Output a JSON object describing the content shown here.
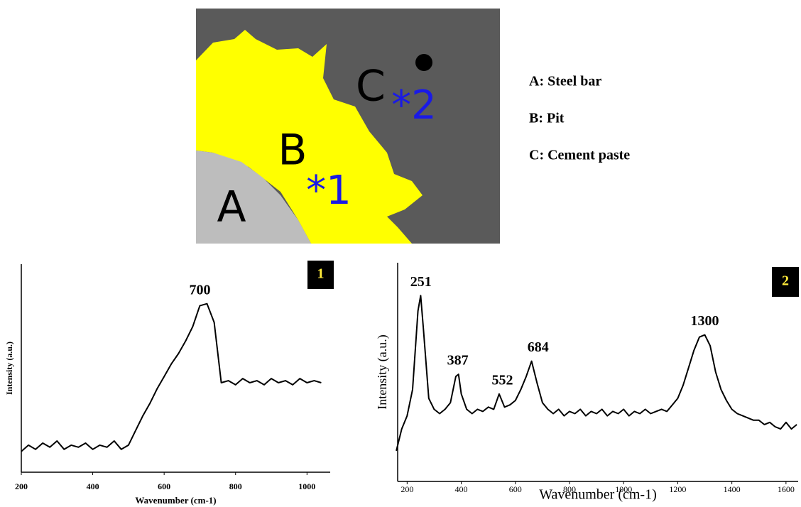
{
  "image": {
    "labels": [
      "A",
      "B",
      "C"
    ],
    "points": [
      "*1",
      "*2"
    ],
    "legend": [
      "A: Steel bar",
      "B: Pit",
      "C: Cement paste"
    ]
  },
  "chart_data": [
    {
      "type": "line",
      "panel": "1",
      "x_label": "Wavenumber (cm-1)",
      "y_label": "Intensity (a.u.)",
      "color": "#000000",
      "x": [
        200,
        220,
        240,
        260,
        280,
        300,
        320,
        340,
        360,
        380,
        400,
        420,
        440,
        460,
        480,
        500,
        520,
        540,
        560,
        580,
        600,
        620,
        640,
        660,
        680,
        700,
        720,
        740,
        760,
        780,
        800,
        820,
        840,
        860,
        880,
        900,
        920,
        940,
        960,
        980,
        1000,
        1020,
        1040
      ],
      "values": [
        10,
        13,
        11,
        14,
        12,
        15,
        11,
        13,
        12,
        14,
        11,
        13,
        12,
        15,
        11,
        13,
        20,
        27,
        33,
        40,
        46,
        52,
        57,
        63,
        70,
        80,
        81,
        72,
        43,
        44,
        42,
        45,
        43,
        44,
        42,
        45,
        43,
        44,
        42,
        45,
        43,
        44,
        43
      ],
      "xlim": [
        200,
        1065
      ],
      "xticks": [
        200,
        400,
        600,
        800,
        1000
      ],
      "ylim": [
        0,
        100
      ],
      "peaks": [
        700
      ]
    },
    {
      "type": "line",
      "panel": "2",
      "x_label": "Wavenumber (cm-1)",
      "y_label": "Intensity (a.u.)",
      "color": "#000000",
      "x": [
        160,
        180,
        200,
        220,
        240,
        250,
        260,
        280,
        300,
        320,
        340,
        360,
        380,
        390,
        400,
        420,
        440,
        460,
        480,
        500,
        520,
        540,
        560,
        580,
        600,
        620,
        640,
        660,
        680,
        700,
        720,
        740,
        760,
        780,
        800,
        820,
        840,
        860,
        880,
        900,
        920,
        940,
        960,
        980,
        1000,
        1020,
        1040,
        1060,
        1080,
        1100,
        1120,
        1140,
        1160,
        1180,
        1200,
        1220,
        1240,
        1260,
        1280,
        1300,
        1320,
        1340,
        1360,
        1380,
        1400,
        1420,
        1440,
        1460,
        1480,
        1500,
        1520,
        1540,
        1560,
        1580,
        1600,
        1620,
        1640
      ],
      "values": [
        14,
        24,
        30,
        42,
        78,
        85,
        70,
        38,
        33,
        31,
        33,
        36,
        48,
        49,
        40,
        33,
        31,
        33,
        32,
        34,
        33,
        40,
        34,
        35,
        37,
        42,
        48,
        55,
        45,
        36,
        33,
        31,
        33,
        30,
        32,
        31,
        33,
        30,
        32,
        31,
        33,
        30,
        32,
        31,
        33,
        30,
        32,
        31,
        33,
        31,
        32,
        33,
        32,
        35,
        38,
        44,
        52,
        60,
        66,
        67,
        62,
        50,
        42,
        37,
        33,
        31,
        30,
        29,
        28,
        28,
        26,
        27,
        25,
        24,
        27,
        24,
        26
      ],
      "xlim": [
        165,
        1645
      ],
      "xticks": [
        200,
        400,
        600,
        800,
        1000,
        1200,
        1400,
        1600
      ],
      "ylim": [
        0,
        100
      ],
      "peaks": [
        251,
        387,
        552,
        684,
        1300
      ]
    }
  ]
}
